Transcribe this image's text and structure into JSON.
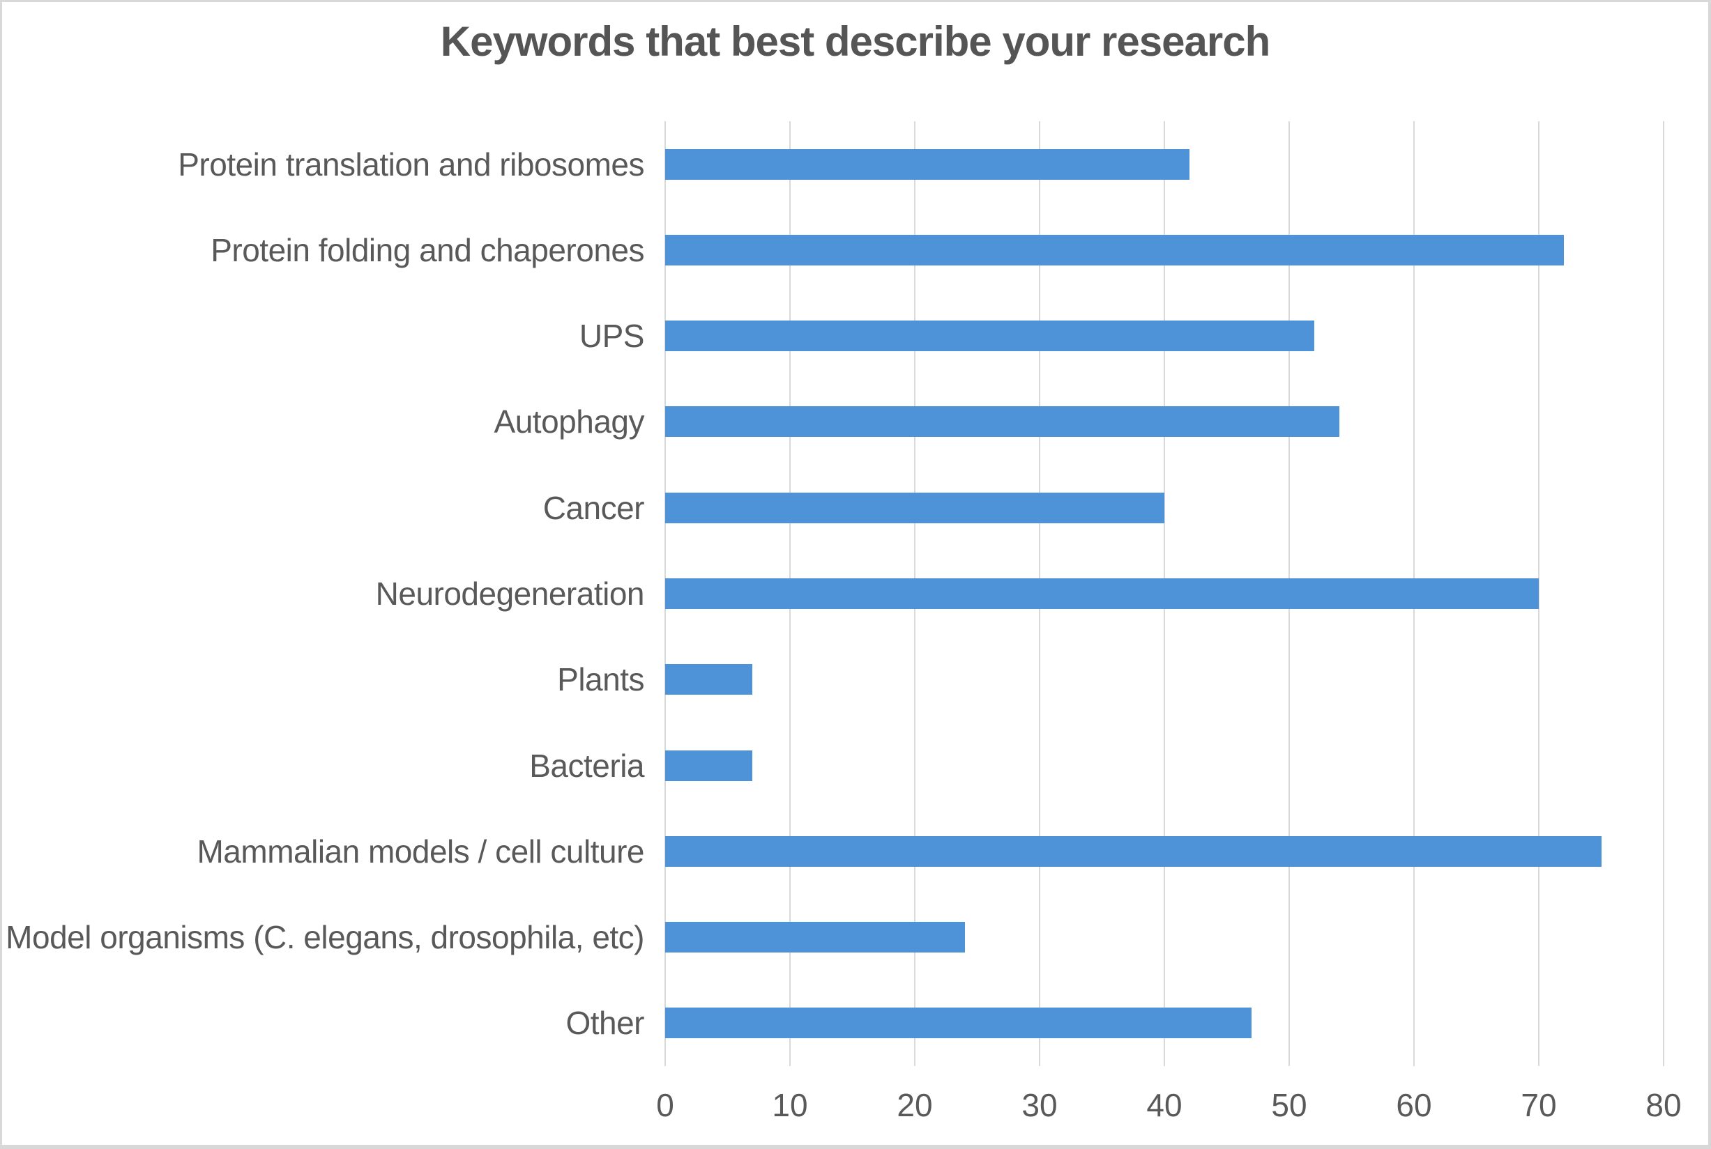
{
  "page": {
    "background": "#FFFFFF",
    "border_color": "#D8D8D8"
  },
  "chart_data": {
    "type": "bar",
    "orientation": "horizontal",
    "title": "Keywords that best describe your research",
    "categories": [
      "Protein translation and ribosomes",
      "Protein folding and chaperones",
      "UPS",
      "Autophagy",
      "Cancer",
      "Neurodegeneration",
      "Plants",
      "Bacteria",
      "Mammalian models / cell culture",
      "Model organisms (C. elegans, drosophila, etc)",
      "Other"
    ],
    "values": [
      42,
      72,
      52,
      54,
      40,
      70,
      7,
      7,
      75,
      24,
      47
    ],
    "xlabel": "",
    "ylabel": "",
    "xlim": [
      0,
      80
    ],
    "x_ticks": [
      0,
      10,
      20,
      30,
      40,
      50,
      60,
      70,
      80
    ],
    "grid": true,
    "legend": false,
    "bar_color": "#4E93D8",
    "gridline_color": "#D9D9D9",
    "tick_label_color": "#595959",
    "category_label_color": "#595959",
    "title_color": "#555555"
  }
}
